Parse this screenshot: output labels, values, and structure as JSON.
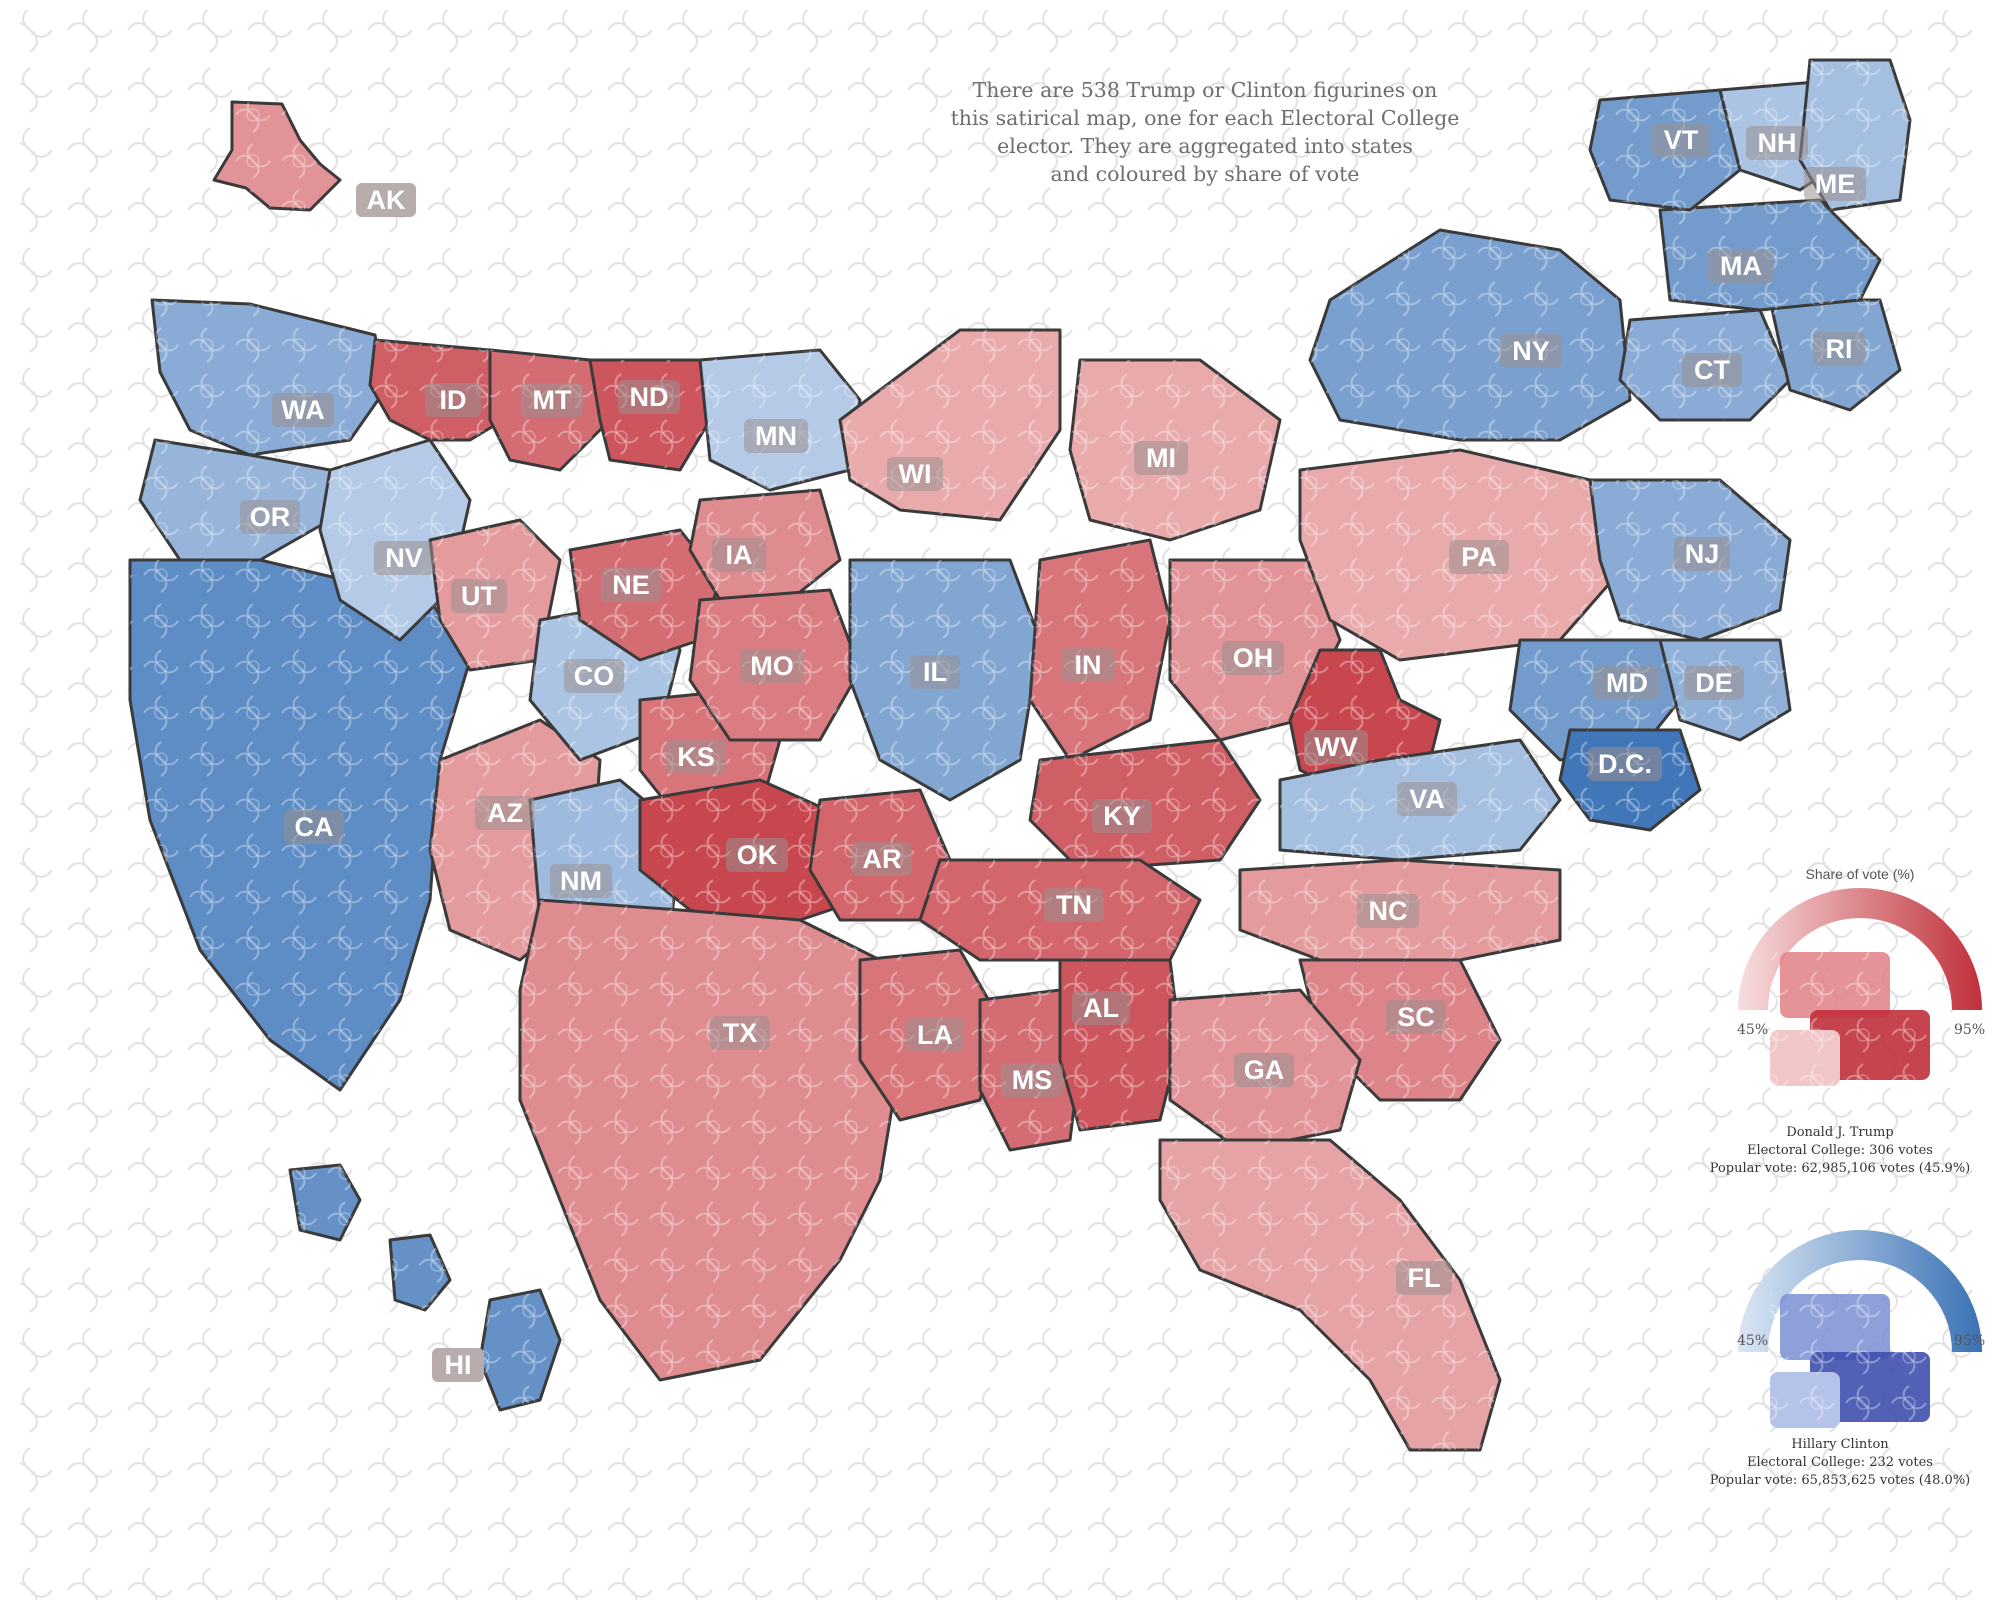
{
  "description": [
    "There are 538 Trump or Clinton figurines on",
    "this satirical map, one for each Electoral College",
    "elector. They are aggregated into states",
    "and coloured by share of vote"
  ],
  "colors": {
    "trump_light": "#f3c9c9",
    "trump_dark": "#c0303a",
    "clinton_light": "#c9d9ef",
    "clinton_dark": "#3a72b5",
    "outline": "#3a3a3a",
    "label_chip": "#9a8f8f",
    "background_tile": "#e4e4e4"
  },
  "legend": {
    "title": "Share of vote (%)",
    "min_label": "45%",
    "max_label": "95%",
    "trump": {
      "name": "Donald J. Trump",
      "electoral": "Electoral College: 306 votes",
      "popular": "Popular vote: 62,985,106 votes (45.9%)"
    },
    "clinton": {
      "name": "Hillary Clinton",
      "electoral": "Electoral College: 232 votes",
      "popular": "Popular vote: 65,853,625 votes (48.0%)"
    }
  },
  "chart_data": {
    "type": "table",
    "title": "538 Trump or Clinton figurines, aggregated into states, coloured by share of vote",
    "scale": {
      "min_pct": 45,
      "max_pct": 95
    },
    "states": [
      {
        "abbr": "AK",
        "winner": "trump",
        "intensity": 0.35
      },
      {
        "abbr": "WA",
        "winner": "clinton",
        "intensity": 0.45
      },
      {
        "abbr": "OR",
        "winner": "clinton",
        "intensity": 0.35
      },
      {
        "abbr": "CA",
        "winner": "clinton",
        "intensity": 0.75
      },
      {
        "abbr": "NV",
        "winner": "clinton",
        "intensity": 0.15
      },
      {
        "abbr": "ID",
        "winner": "trump",
        "intensity": 0.7
      },
      {
        "abbr": "MT",
        "winner": "trump",
        "intensity": 0.6
      },
      {
        "abbr": "ND",
        "winner": "trump",
        "intensity": 0.75
      },
      {
        "abbr": "UT",
        "winner": "trump",
        "intensity": 0.3
      },
      {
        "abbr": "AZ",
        "winner": "trump",
        "intensity": 0.3
      },
      {
        "abbr": "CO",
        "winner": "clinton",
        "intensity": 0.2
      },
      {
        "abbr": "NM",
        "winner": "clinton",
        "intensity": 0.3
      },
      {
        "abbr": "NE",
        "winner": "trump",
        "intensity": 0.6
      },
      {
        "abbr": "KS",
        "winner": "trump",
        "intensity": 0.55
      },
      {
        "abbr": "OK",
        "winner": "trump",
        "intensity": 0.85
      },
      {
        "abbr": "TX",
        "winner": "trump",
        "intensity": 0.4
      },
      {
        "abbr": "MN",
        "winner": "clinton",
        "intensity": 0.15
      },
      {
        "abbr": "IA",
        "winner": "trump",
        "intensity": 0.4
      },
      {
        "abbr": "MO",
        "winner": "trump",
        "intensity": 0.5
      },
      {
        "abbr": "AR",
        "winner": "trump",
        "intensity": 0.65
      },
      {
        "abbr": "LA",
        "winner": "trump",
        "intensity": 0.55
      },
      {
        "abbr": "WI",
        "winner": "trump",
        "intensity": 0.2
      },
      {
        "abbr": "IL",
        "winner": "clinton",
        "intensity": 0.5
      },
      {
        "abbr": "MI",
        "winner": "trump",
        "intensity": 0.2
      },
      {
        "abbr": "IN",
        "winner": "trump",
        "intensity": 0.55
      },
      {
        "abbr": "KY",
        "winner": "trump",
        "intensity": 0.7
      },
      {
        "abbr": "TN",
        "winner": "trump",
        "intensity": 0.65
      },
      {
        "abbr": "MS",
        "winner": "trump",
        "intensity": 0.6
      },
      {
        "abbr": "AL",
        "winner": "trump",
        "intensity": 0.75
      },
      {
        "abbr": "OH",
        "winner": "trump",
        "intensity": 0.35
      },
      {
        "abbr": "WV",
        "winner": "trump",
        "intensity": 0.85
      },
      {
        "abbr": "GA",
        "winner": "trump",
        "intensity": 0.35
      },
      {
        "abbr": "FL",
        "winner": "trump",
        "intensity": 0.25
      },
      {
        "abbr": "SC",
        "winner": "trump",
        "intensity": 0.45
      },
      {
        "abbr": "NC",
        "winner": "trump",
        "intensity": 0.3
      },
      {
        "abbr": "VA",
        "winner": "clinton",
        "intensity": 0.25
      },
      {
        "abbr": "PA",
        "winner": "trump",
        "intensity": 0.2
      },
      {
        "abbr": "NY",
        "winner": "clinton",
        "intensity": 0.55
      },
      {
        "abbr": "NJ",
        "winner": "clinton",
        "intensity": 0.45
      },
      {
        "abbr": "MD",
        "winner": "clinton",
        "intensity": 0.6
      },
      {
        "abbr": "DE",
        "winner": "clinton",
        "intensity": 0.4
      },
      {
        "abbr": "D.C.",
        "winner": "clinton",
        "intensity": 0.95
      },
      {
        "abbr": "VT",
        "winner": "clinton",
        "intensity": 0.6
      },
      {
        "abbr": "NH",
        "winner": "clinton",
        "intensity": 0.2
      },
      {
        "abbr": "ME",
        "winner": "clinton",
        "intensity": 0.25
      },
      {
        "abbr": "MA",
        "winner": "clinton",
        "intensity": 0.6
      },
      {
        "abbr": "RI",
        "winner": "clinton",
        "intensity": 0.5
      },
      {
        "abbr": "CT",
        "winner": "clinton",
        "intensity": 0.45
      },
      {
        "abbr": "HI",
        "winner": "clinton",
        "intensity": 0.7
      }
    ]
  }
}
